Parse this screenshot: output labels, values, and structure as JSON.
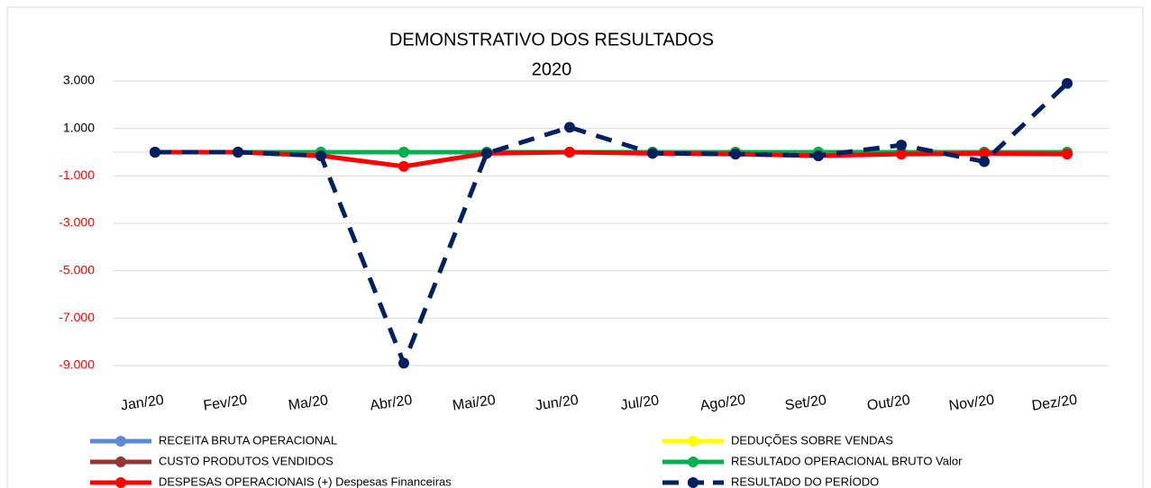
{
  "chart_data": {
    "type": "line",
    "title": "DEMONSTRATIVO DOS RESULTADOS",
    "subtitle": "2020",
    "categories": [
      "Jan/20",
      "Fev/20",
      "Ma/20",
      "Abr/20",
      "Mai/20",
      "Jun/20",
      "Jul/20",
      "Ago/20",
      "Set/20",
      "Out/20",
      "Nov/20",
      "Dez/20"
    ],
    "series": [
      {
        "name": "RECEITA BRUTA OPERACIONAL",
        "color": "#5b8bd0",
        "line_style": "solid",
        "values": [
          0,
          0,
          0,
          0,
          0,
          0,
          0,
          0,
          0,
          0,
          0,
          0
        ]
      },
      {
        "name": "DEDUÇÕES SOBRE VENDAS",
        "color": "#ffff00",
        "line_style": "solid",
        "values": [
          0,
          0,
          0,
          0,
          0,
          0,
          0,
          0,
          0,
          0,
          0,
          0
        ]
      },
      {
        "name": "CUSTO PRODUTOS VENDIDOS",
        "color": "#943634",
        "line_style": "solid",
        "values": [
          0,
          0,
          0,
          0,
          0,
          0,
          0,
          0,
          0,
          0,
          0,
          0
        ]
      },
      {
        "name": "RESULTADO OPERACIONAL BRUTO Valor",
        "color": "#00b050",
        "line_style": "solid",
        "values": [
          0,
          0,
          0,
          0,
          0,
          0,
          0,
          0,
          0,
          0,
          0,
          0
        ]
      },
      {
        "name": "DESPESAS OPERACIONAIS (+) Despesas Financeiras",
        "color": "#ff0000",
        "line_style": "solid",
        "values": [
          0,
          0,
          -150,
          -600,
          -50,
          0,
          -50,
          -80,
          -150,
          -80,
          -50,
          -80
        ]
      },
      {
        "name": "RESULTADO DO PERÍODO",
        "color": "#002060",
        "line_style": "dashed",
        "values": [
          0,
          0,
          -150,
          -8900,
          -50,
          1050,
          -50,
          -80,
          -150,
          300,
          -400,
          2900
        ]
      }
    ],
    "ylim": [
      -9000,
      3000
    ],
    "yticks": [
      {
        "value": -9000,
        "label": "-9.000"
      },
      {
        "value": -7000,
        "label": "-7.000"
      },
      {
        "value": -5000,
        "label": "-5.000"
      },
      {
        "value": -3000,
        "label": "-3.000"
      },
      {
        "value": -1000,
        "label": "-1.000"
      },
      {
        "value": 1000,
        "label": "1.000"
      },
      {
        "value": 3000,
        "label": "3.000"
      }
    ],
    "negative_tick_color": "#ff0000",
    "grid": true,
    "legend": "bottom"
  }
}
